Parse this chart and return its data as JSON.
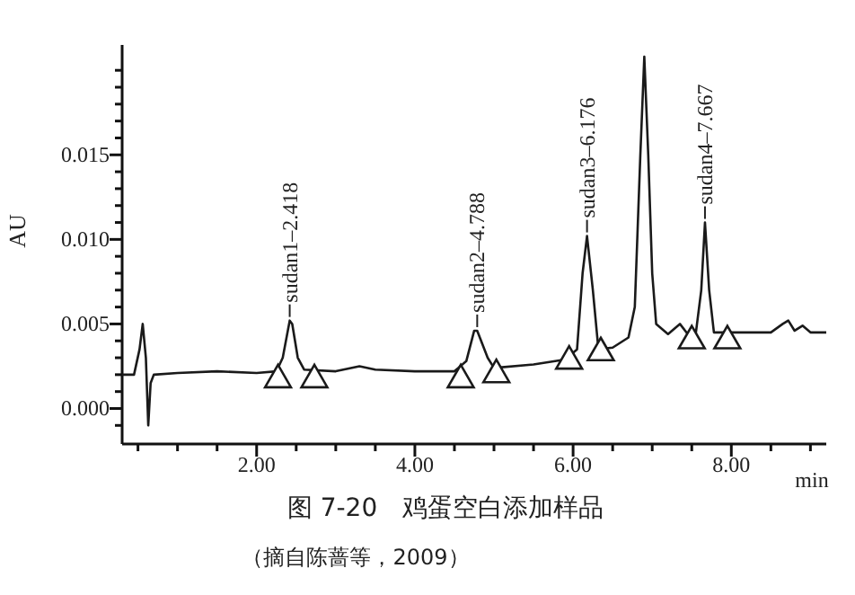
{
  "chart_data": {
    "type": "line",
    "title": "图 7-20　鸡蛋空白添加样品",
    "xlabel": "min",
    "ylabel": "AU",
    "xlim": [
      0.3,
      9.2
    ],
    "ylim": [
      -0.0021,
      0.0215
    ],
    "xticks": [
      {
        "value": 0.5,
        "label": null
      },
      {
        "value": 1,
        "label": null
      },
      {
        "value": 1.5,
        "label": null
      },
      {
        "value": 2,
        "label": "2.00"
      },
      {
        "value": 2.5,
        "label": null
      },
      {
        "value": 3,
        "label": null
      },
      {
        "value": 3.5,
        "label": null
      },
      {
        "value": 4,
        "label": "4.00"
      },
      {
        "value": 4.5,
        "label": null
      },
      {
        "value": 5,
        "label": null
      },
      {
        "value": 5.5,
        "label": null
      },
      {
        "value": 6,
        "label": "6.00"
      },
      {
        "value": 6.5,
        "label": null
      },
      {
        "value": 7,
        "label": null
      },
      {
        "value": 7.5,
        "label": null
      },
      {
        "value": 8,
        "label": "8.00"
      },
      {
        "value": 8.5,
        "label": null
      },
      {
        "value": 9,
        "label": null
      }
    ],
    "yticks": [
      {
        "value": -0.001,
        "label": null
      },
      {
        "value": 0,
        "label": "0.000"
      },
      {
        "value": 0.001,
        "label": null
      },
      {
        "value": 0.002,
        "label": null
      },
      {
        "value": 0.003,
        "label": null
      },
      {
        "value": 0.004,
        "label": null
      },
      {
        "value": 0.005,
        "label": "0.005"
      },
      {
        "value": 0.006,
        "label": null
      },
      {
        "value": 0.007,
        "label": null
      },
      {
        "value": 0.008,
        "label": null
      },
      {
        "value": 0.009,
        "label": null
      },
      {
        "value": 0.01,
        "label": "0.010"
      },
      {
        "value": 0.011,
        "label": null
      },
      {
        "value": 0.012,
        "label": null
      },
      {
        "value": 0.013,
        "label": null
      },
      {
        "value": 0.014,
        "label": null
      },
      {
        "value": 0.015,
        "label": "0.015"
      },
      {
        "value": 0.016,
        "label": null
      },
      {
        "value": 0.017,
        "label": null
      },
      {
        "value": 0.018,
        "label": null
      },
      {
        "value": 0.019,
        "label": null
      },
      {
        "value": 0.02,
        "label": null
      }
    ],
    "series": [
      {
        "color": "#1a1a1a",
        "x": [
          0.3,
          0.45,
          0.52,
          0.56,
          0.6,
          0.63,
          0.66,
          0.7,
          1.0,
          1.5,
          2.0,
          2.25,
          2.33,
          2.418,
          2.45,
          2.52,
          2.6,
          3.0,
          3.3,
          3.5,
          4.0,
          4.5,
          4.65,
          4.75,
          4.788,
          4.92,
          5.0,
          5.5,
          5.9,
          6.05,
          6.12,
          6.176,
          6.25,
          6.32,
          6.5,
          6.7,
          6.78,
          6.85,
          6.9,
          6.95,
          7.0,
          7.05,
          7.2,
          7.35,
          7.45,
          7.55,
          7.62,
          7.667,
          7.72,
          7.78,
          8.0,
          8.5,
          8.65,
          8.72,
          8.8,
          8.9,
          9.0,
          9.2
        ],
        "values": [
          0.002,
          0.002,
          0.0035,
          0.005,
          0.003,
          -0.001,
          0.0015,
          0.002,
          0.0021,
          0.0022,
          0.0021,
          0.0022,
          0.003,
          0.0052,
          0.005,
          0.003,
          0.0023,
          0.0022,
          0.0025,
          0.0023,
          0.0022,
          0.0022,
          0.0028,
          0.0046,
          0.0046,
          0.003,
          0.0024,
          0.0026,
          0.0029,
          0.0035,
          0.008,
          0.0102,
          0.007,
          0.0035,
          0.0036,
          0.0042,
          0.006,
          0.015,
          0.0208,
          0.015,
          0.008,
          0.005,
          0.0044,
          0.005,
          0.0044,
          0.0044,
          0.007,
          0.011,
          0.007,
          0.0045,
          0.0045,
          0.0045,
          0.005,
          0.0052,
          0.0046,
          0.0049,
          0.0045,
          0.0045
        ]
      },
      {
        "type": "scatter",
        "color": "#1a1a1a",
        "marker": "triangle",
        "x": [
          2.27,
          2.73,
          4.58,
          5.03,
          5.95,
          6.35,
          7.5,
          7.95
        ],
        "values": [
          0.0017,
          0.0017,
          0.0017,
          0.002,
          0.0028,
          0.0033,
          0.004,
          0.004
        ]
      }
    ],
    "annotations": [
      {
        "text": "sudan1–2.418",
        "x": 2.418,
        "y": 0.0052
      },
      {
        "text": "sudan2–4.788",
        "x": 4.788,
        "y": 0.0046
      },
      {
        "text": "sudan3–6.176",
        "x": 6.176,
        "y": 0.0102
      },
      {
        "text": "sudan4–7.667",
        "x": 7.667,
        "y": 0.011
      },
      "（摘自陈蔷等，2009）"
    ]
  }
}
